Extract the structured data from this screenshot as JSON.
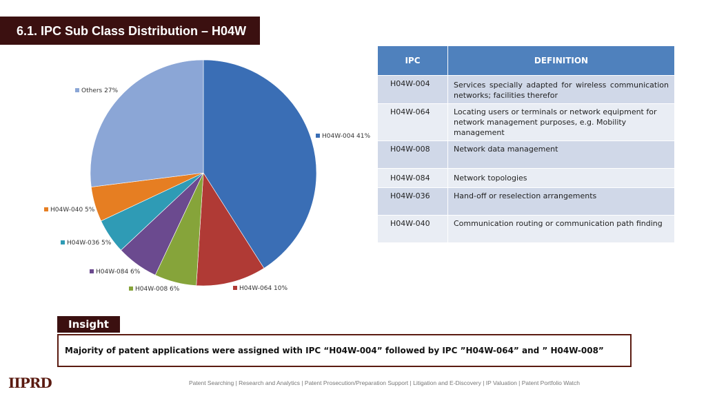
{
  "title": "6.1. IPC Sub Class Distribution – H04W",
  "chart_data": {
    "type": "pie",
    "slices": [
      {
        "label": "H04W-004",
        "pct_label": "41%",
        "value": 41,
        "color": "#3a6eb5"
      },
      {
        "label": "H04W-064",
        "pct_label": "10%",
        "value": 10,
        "color": "#b03a35"
      },
      {
        "label": "H04W-008",
        "pct_label": "6%",
        "value": 6,
        "color": "#86a43a"
      },
      {
        "label": "H04W-084",
        "pct_label": "6%",
        "value": 6,
        "color": "#6b4a8f"
      },
      {
        "label": "H04W-036",
        "pct_label": "5%",
        "value": 5,
        "color": "#2f9bb5"
      },
      {
        "label": "H04W-040",
        "pct_label": "5%",
        "value": 5,
        "color": "#e67e22"
      },
      {
        "label": "Others",
        "pct_label": "27%",
        "value": 27,
        "color": "#8ba6d6"
      }
    ]
  },
  "table": {
    "headers": [
      "IPC",
      "DEFINITION"
    ],
    "rows": [
      {
        "code": "H04W-004",
        "definition": "Services specially adapted for wireless communication networks; facilities therefor"
      },
      {
        "code": "H04W-064",
        "definition": "Locating users or terminals or network equipment for network management purposes, e.g. Mobility management"
      },
      {
        "code": "H04W-008",
        "definition": "Network data management"
      },
      {
        "code": "H04W-084",
        "definition": "Network topologies"
      },
      {
        "code": "H04W-036",
        "definition": "Hand-off or reselection arrangements"
      },
      {
        "code": "H04W-040",
        "definition": "Communication routing or communication path finding"
      }
    ]
  },
  "insight": {
    "label": "Insight",
    "text": "Majority of patent applications were assigned with IPC “H04W-004” followed by IPC ”H04W-064” and ” H04W-008”"
  },
  "logo": "IIPRD",
  "footer": "Patent Searching | Research and Analytics | Patent Prosecution/Preparation Support | Litigation and E-Discovery | IP Valuation | Patent Portfolio Watch"
}
